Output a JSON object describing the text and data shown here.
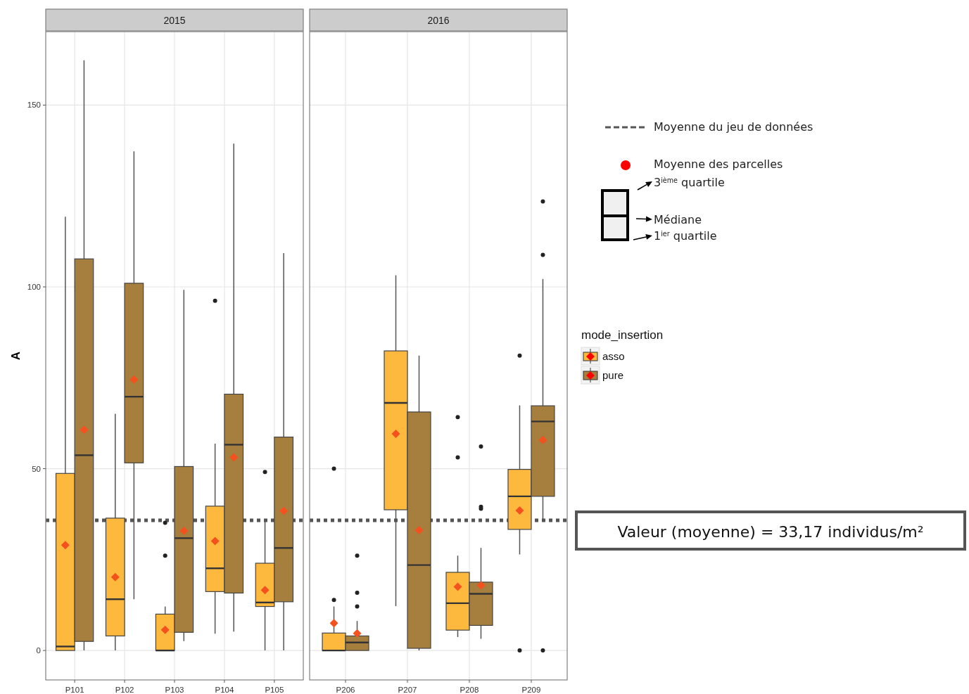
{
  "chart_data": [
    {
      "type": "box",
      "title": "2015",
      "ylabel": "A",
      "categories": [
        "P101",
        "P102",
        "P103",
        "P104",
        "P105"
      ],
      "ylim": [
        -8.1,
        170.2
      ],
      "yticks": [
        0,
        50,
        100,
        150
      ],
      "grid": true,
      "legend": false,
      "ref_lines": [
        {
          "axis": "y",
          "value": 35.8,
          "color": "#555555",
          "line_style": "dotted"
        }
      ],
      "series": [
        {
          "color": "#fdb83e",
          "boxes": [
            {
              "low": 0,
              "q1": 0,
              "median": 1.1,
              "q3": 48.7,
              "high": 119.3,
              "mean": 29.0
            },
            {
              "low": 0,
              "q1": 4.0,
              "median": 14.1,
              "q3": 36.4,
              "high": 65.1,
              "mean": 20.2
            },
            {
              "low": 0,
              "q1": 0,
              "median": 0,
              "q3": 10.0,
              "high": 12.1,
              "mean": 5.7,
              "outliers": [
                26.1,
                35.1
              ]
            },
            {
              "low": 4.6,
              "q1": 16.2,
              "median": 22.6,
              "q3": 39.7,
              "high": 56.9,
              "mean": 30.1,
              "outliers": [
                96.2
              ]
            },
            {
              "low": 0,
              "q1": 12.1,
              "median": 13.2,
              "q3": 24.0,
              "high": 35.8,
              "mean": 16.6,
              "outliers": [
                49.1
              ]
            }
          ]
        },
        {
          "color": "#a67f3e",
          "boxes": [
            {
              "low": 0,
              "q1": 2.5,
              "median": 53.7,
              "q3": 107.7,
              "high": 162.3,
              "mean": 60.7
            },
            {
              "low": 14.1,
              "q1": 51.6,
              "median": 69.8,
              "q3": 101.0,
              "high": 137.3,
              "mean": 74.5
            },
            {
              "low": 2.6,
              "q1": 5.0,
              "median": 30.9,
              "q3": 50.6,
              "high": 99.2,
              "mean": 32.9
            },
            {
              "low": 5.2,
              "q1": 15.8,
              "median": 56.6,
              "q3": 70.5,
              "high": 139.4,
              "mean": 53.1
            },
            {
              "low": 0,
              "q1": 13.4,
              "median": 28.2,
              "q3": 58.7,
              "high": 109.3,
              "mean": 38.4
            }
          ]
        }
      ]
    },
    {
      "type": "box",
      "title": "2016",
      "categories": [
        "P206",
        "P207",
        "P208",
        "P209"
      ],
      "ylim": [
        -8.1,
        170.2
      ],
      "yticks": [
        0,
        50,
        100,
        150
      ],
      "tick_labels": "x",
      "grid": true,
      "legend": "right",
      "legend_title": "mode_insertion",
      "ref_lines": [
        {
          "axis": "y",
          "value": 35.8,
          "color": "#555555",
          "line_style": "dotted"
        }
      ],
      "annotations": [
        "Moyenne du jeu de données",
        "Moyenne des parcelles",
        "3$^{ième}$ quartile",
        "Médiane",
        "1$^{ier}$ quartile",
        "Valeur (moyenne) = 33,17 individus/m²"
      ],
      "series": [
        {
          "name": "asso",
          "color": "#fdb83e",
          "boxes": [
            {
              "low": 0,
              "q1": 0,
              "median": 0,
              "q3": 4.8,
              "high": 12.1,
              "mean": 7.5,
              "outliers": [
                13.9,
                50.0
              ]
            },
            {
              "low": 12.2,
              "q1": 38.7,
              "median": 68.1,
              "q3": 82.4,
              "high": 103.2,
              "mean": 59.6
            },
            {
              "low": 3.7,
              "q1": 5.6,
              "median": 13.0,
              "q3": 21.5,
              "high": 26.1,
              "mean": 17.5,
              "outliers": [
                53.1,
                64.2
              ]
            },
            {
              "low": 26.4,
              "q1": 33.3,
              "median": 42.4,
              "q3": 49.8,
              "high": 67.4,
              "mean": 38.5,
              "outliers": [
                0,
                81.1
              ]
            }
          ]
        },
        {
          "name": "pure",
          "color": "#a67f3e",
          "boxes": [
            {
              "low": 0,
              "q1": 0,
              "median": 2.2,
              "q3": 4.0,
              "high": 8.1,
              "mean": 4.7,
              "outliers": [
                12.1,
                15.9,
                26.1
              ]
            },
            {
              "low": 0,
              "q1": 0.6,
              "median": 23.5,
              "q3": 65.6,
              "high": 81.1,
              "mean": 33.1
            },
            {
              "low": 3.2,
              "q1": 6.9,
              "median": 15.6,
              "q3": 18.8,
              "high": 28.2,
              "mean": 17.9,
              "outliers": [
                39.0,
                39.5,
                56.1
              ]
            },
            {
              "low": 35.5,
              "q1": 42.4,
              "median": 63.0,
              "q3": 67.3,
              "high": 102.2,
              "mean": 57.9,
              "outliers": [
                0,
                108.8,
                123.5
              ]
            }
          ]
        }
      ]
    }
  ]
}
